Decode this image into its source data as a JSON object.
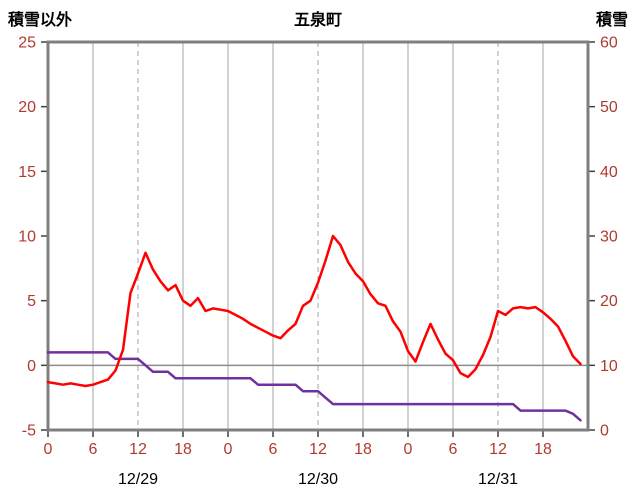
{
  "header": {
    "left_axis_title": "積雪以外",
    "title": "五泉町",
    "right_axis_title": "積雪"
  },
  "chart_data": {
    "type": "line",
    "title": "五泉町",
    "left_axis": {
      "label": "積雪以外",
      "min": -5,
      "max": 25,
      "ticks": [
        25,
        20,
        15,
        10,
        5,
        0,
        -5
      ]
    },
    "right_axis": {
      "label": "積雪",
      "min": 0,
      "max": 60,
      "ticks": [
        60,
        50,
        40,
        30,
        20,
        10,
        0
      ]
    },
    "x_axis": {
      "total_hours": 72,
      "x_unit": "hour index from 12/29 00:00, 1 point per hour",
      "tick_hours": [
        0,
        6,
        12,
        18,
        24,
        30,
        36,
        42,
        48,
        54,
        60,
        66
      ],
      "tick_labels": [
        "0",
        "6",
        "12",
        "18",
        "0",
        "6",
        "12",
        "18",
        "0",
        "6",
        "12",
        "18"
      ],
      "date_labels": [
        {
          "label": "12/29",
          "center_hour": 12
        },
        {
          "label": "12/30",
          "center_hour": 36
        },
        {
          "label": "12/31",
          "center_hour": 60
        }
      ]
    },
    "series": [
      {
        "name": "non-snow-red",
        "color": "#ff0000",
        "axis": "left",
        "values": [
          -1.3,
          -1.4,
          -1.5,
          -1.4,
          -1.5,
          -1.6,
          -1.5,
          -1.3,
          -1.1,
          -0.4,
          1.2,
          5.6,
          7.1,
          8.7,
          7.4,
          6.5,
          5.8,
          6.2,
          5.0,
          4.6,
          5.2,
          4.2,
          4.4,
          4.3,
          4.2,
          3.9,
          3.6,
          3.2,
          2.9,
          2.6,
          2.3,
          2.1,
          2.7,
          3.2,
          4.6,
          5.0,
          6.4,
          8.1,
          10.0,
          9.3,
          8.0,
          7.1,
          6.5,
          5.5,
          4.8,
          4.6,
          3.4,
          2.6,
          1.1,
          0.3,
          1.8,
          3.2,
          2.0,
          0.9,
          0.4,
          -0.6,
          -0.9,
          -0.3,
          0.8,
          2.2,
          4.2,
          3.9,
          4.4,
          4.5,
          4.4,
          4.5,
          4.1,
          3.6,
          3.0,
          1.9,
          0.7,
          0.1
        ]
      },
      {
        "name": "snow-depth-purple",
        "color": "#7030a0",
        "axis": "right",
        "values": [
          12,
          12,
          12,
          12,
          12,
          12,
          12,
          12,
          12,
          11,
          11,
          11,
          11,
          10,
          9,
          9,
          9,
          8,
          8,
          8,
          8,
          8,
          8,
          8,
          8,
          8,
          8,
          8,
          7,
          7,
          7,
          7,
          7,
          7,
          6,
          6,
          6,
          5,
          4,
          4,
          4,
          4,
          4,
          4,
          4,
          4,
          4,
          4,
          4,
          4,
          4,
          4,
          4,
          4,
          4,
          4,
          4,
          4,
          4,
          4,
          4,
          4,
          4,
          3,
          3,
          3,
          3,
          3,
          3,
          3,
          2.5,
          1.5
        ]
      }
    ],
    "style": {
      "axis_number_color": "#b03a2e",
      "date_label_color": "#000000",
      "grid_color": "#a6a6a6",
      "frame_color": "#7f7f7f",
      "zero_line_color": "#8c8c8c",
      "tick_mark_color": "#404040"
    }
  }
}
